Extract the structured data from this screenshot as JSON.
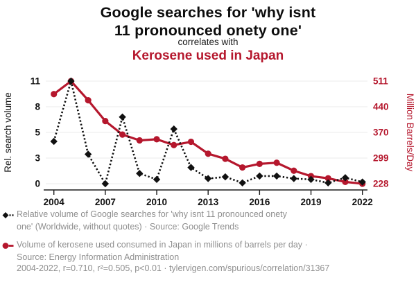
{
  "header": {
    "title_line1": "Google searches for 'why isnt",
    "title_line2": "11 pronounced onety one'",
    "connector": "correlates with",
    "secondary_title": "Kerosene used in Japan"
  },
  "chart_data": {
    "type": "line",
    "x": [
      2004,
      2005,
      2006,
      2007,
      2008,
      2009,
      2010,
      2011,
      2012,
      2013,
      2014,
      2015,
      2016,
      2017,
      2018,
      2019,
      2020,
      2021,
      2022
    ],
    "x_tick_labels": [
      "2004",
      "2007",
      "2010",
      "2013",
      "2016",
      "2019",
      "2022"
    ],
    "series": [
      {
        "name": "Relative volume of Google searches for 'why isnt 11 pronounced onety one'",
        "axis": "left",
        "style": "dotted-diamond",
        "color": "#111111",
        "values": [
          4.3,
          11,
          3.3,
          0,
          6.8,
          1.2,
          0.5,
          5.4,
          1.9,
          0.6,
          0.8,
          0.1,
          0.9,
          0.9,
          0.6,
          0.5,
          0.1,
          0.7,
          0.2
        ]
      },
      {
        "name": "Volume of kerosene used consumed in Japan",
        "axis": "right",
        "style": "solid-circle",
        "color": "#b5172d",
        "values": [
          475,
          511,
          458,
          401,
          364,
          348,
          351,
          335,
          344,
          311,
          297,
          273,
          283,
          286,
          264,
          249,
          243,
          233,
          228
        ]
      }
    ],
    "left_axis": {
      "title": "Rel. search volume",
      "ticks": [
        0,
        3,
        5,
        8,
        11
      ]
    },
    "right_axis": {
      "title": "Million Barrels/Day",
      "ticks": [
        228,
        299,
        370,
        440,
        511
      ]
    },
    "grid": true,
    "legend_position": "bottom"
  },
  "legend": {
    "items": [
      {
        "marker": "black-diamond-dotted-line",
        "line1": "Relative volume of Google searches for 'why isnt 11 pronounced onety",
        "line2": "one' (Worldwide, without quotes) · Source: Google Trends"
      },
      {
        "marker": "red-circle-solid-line",
        "line1": "Volume of kerosene used consumed in Japan in millions of barrels per day ·",
        "line2": "Source: Energy Information Administration"
      }
    ]
  },
  "footer": {
    "citation": "2004-2022, r=0.710, r²=0.505, p<0.01 · tylervigen.com/spurious/correlation/31367"
  },
  "colors": {
    "red": "#b5172d",
    "black": "#111111",
    "legend_gray": "#8f8f8f",
    "grid": "#ebebeb",
    "axis": "#1a1a1a"
  }
}
